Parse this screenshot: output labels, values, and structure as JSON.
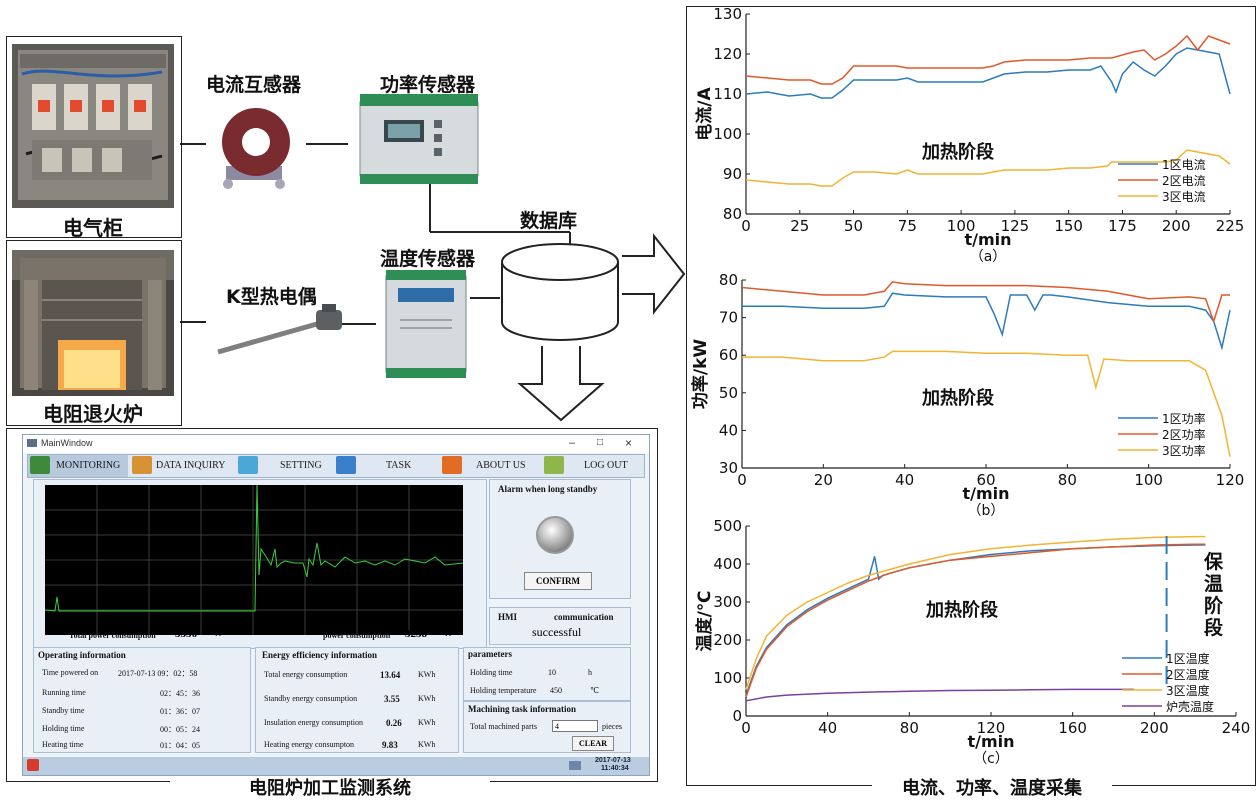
{
  "left": {
    "cabinet_label": "电气柜",
    "furnace_label": "电阻退火炉",
    "ct_label": "电流互感器",
    "power_sensor_label": "功率传感器",
    "thermocouple_label": "K型热电偶",
    "temp_sensor_label": "温度传感器",
    "database_label": "数据库",
    "system_label": "电阻炉加工监测系统",
    "right_caption": "电流、功率、温度采集"
  },
  "window": {
    "title": "MainWindow",
    "title_controls": [
      "–",
      "□",
      "×"
    ],
    "nav": [
      "MONITORING",
      "DATA INQUIRY",
      "SETTING",
      "TASK",
      "ABOUT US",
      "LOG OUT"
    ],
    "alarm_title": "Alarm when long standby",
    "confirm": "CONFIRM",
    "hmi_label": "HMI",
    "comm_label": "communication",
    "comm_status": "successful",
    "total_power_label": "Total power consumption",
    "total_power_value": "5356",
    "total_power_unit": "W",
    "power_label": "power consumption",
    "power_value": "3258",
    "power_unit": "W",
    "operating": {
      "title": "Operating information",
      "rows": [
        {
          "label": "Time powered on",
          "value": "2017-07-13      09：02：58"
        },
        {
          "label": "Running time",
          "value": "02：45：36"
        },
        {
          "label": "Standby time",
          "value": "01：36：07"
        },
        {
          "label": "Holding time",
          "value": "00：05：24"
        },
        {
          "label": "Heating time",
          "value": "01：04：05"
        }
      ]
    },
    "energy": {
      "title": "Energy efficiency information",
      "rows": [
        {
          "label": "Total energy consumption",
          "value": "13.64",
          "unit": "KWh"
        },
        {
          "label": "Standby energy consumption",
          "value": "3.55",
          "unit": "KWh"
        },
        {
          "label": "Insulation energy consumption",
          "value": "0.26",
          "unit": "KWh"
        },
        {
          "label": "Heating energy consumpton",
          "value": "9.83",
          "unit": "KWh"
        }
      ]
    },
    "parameters": {
      "title": "parameters",
      "holding_time_label": "Holding time",
      "holding_time_value": "10",
      "holding_time_unit": "h",
      "holding_temp_label": "Holding temperature",
      "holding_temp_value": "450",
      "holding_temp_unit": "℃"
    },
    "task": {
      "title": "Machining task information",
      "parts_label": "Total machined parts",
      "parts_value": "4",
      "parts_unit": "pieces",
      "clear": "CLEAR"
    },
    "status_date": "2017-07-13",
    "status_time": "11:40:34"
  },
  "chart_data": [
    {
      "type": "line",
      "caption": "（a）",
      "ylabel": "电流/A",
      "xlabel": "t/min",
      "annotation": "加热阶段",
      "xlim": [
        0,
        225
      ],
      "ylim": [
        80,
        130
      ],
      "xticks": [
        0,
        25,
        50,
        75,
        100,
        125,
        150,
        175,
        200,
        225
      ],
      "yticks": [
        80,
        90,
        100,
        110,
        120,
        130
      ],
      "legend_position": "bottom-right",
      "series": [
        {
          "name": "1区电流",
          "color": "#2b7bbf",
          "x": [
            0,
            10,
            20,
            30,
            35,
            40,
            45,
            50,
            60,
            70,
            75,
            80,
            90,
            100,
            110,
            115,
            120,
            130,
            140,
            150,
            160,
            165,
            170,
            172,
            175,
            180,
            185,
            190,
            195,
            200,
            205,
            210,
            215,
            220,
            225
          ],
          "y": [
            110,
            110.5,
            109.5,
            110,
            109,
            109,
            111,
            113.5,
            113.5,
            113.5,
            114,
            113,
            113,
            113,
            113,
            114,
            115,
            115.5,
            115.5,
            116,
            116,
            117,
            113,
            110.5,
            115,
            118,
            116,
            114.5,
            117,
            120,
            121.5,
            121,
            120.5,
            120,
            110
          ]
        },
        {
          "name": "2区电流",
          "color": "#e0592a",
          "x": [
            0,
            10,
            20,
            30,
            35,
            40,
            45,
            50,
            60,
            70,
            75,
            80,
            90,
            100,
            110,
            115,
            120,
            130,
            140,
            150,
            160,
            170,
            180,
            185,
            190,
            195,
            200,
            205,
            210,
            215,
            220,
            225
          ],
          "y": [
            114.5,
            114,
            113.5,
            113.5,
            112.5,
            112.5,
            114,
            117,
            117,
            117,
            116.5,
            116.5,
            116.5,
            116.5,
            116.5,
            117,
            118,
            118.5,
            118.5,
            118.5,
            119,
            119,
            120.5,
            121,
            118.5,
            120,
            122,
            124.5,
            121,
            124.5,
            123.5,
            122.5
          ]
        },
        {
          "name": "3区电流",
          "color": "#f2b431",
          "x": [
            0,
            10,
            20,
            30,
            35,
            40,
            45,
            50,
            60,
            70,
            75,
            80,
            90,
            100,
            110,
            120,
            130,
            140,
            150,
            160,
            168,
            170,
            180,
            190,
            195,
            200,
            205,
            210,
            215,
            220,
            225
          ],
          "y": [
            88.5,
            88,
            87.5,
            87.5,
            87,
            87,
            89,
            90.5,
            90.5,
            90,
            91,
            90,
            90,
            90,
            90,
            91,
            91,
            91,
            91.5,
            91.5,
            92,
            93,
            93,
            93,
            93,
            93.5,
            96,
            95.5,
            95,
            94.5,
            92.5
          ]
        }
      ]
    },
    {
      "type": "line",
      "caption": "（b）",
      "ylabel": "功率/kW",
      "xlabel": "t/min",
      "annotation": "加热阶段",
      "xlim": [
        0,
        120
      ],
      "ylim": [
        30,
        80
      ],
      "xticks": [
        0,
        20,
        40,
        60,
        80,
        100,
        120
      ],
      "yticks": [
        30,
        40,
        50,
        60,
        70,
        80
      ],
      "legend_position": "bottom-right",
      "series": [
        {
          "name": "1区功率",
          "color": "#2b7bbf",
          "x": [
            0,
            10,
            20,
            30,
            35,
            37,
            40,
            50,
            60,
            62,
            64,
            66,
            70,
            72,
            74,
            76,
            80,
            90,
            100,
            110,
            114,
            116,
            118,
            120
          ],
          "y": [
            73,
            73,
            72.5,
            72.5,
            73,
            76.5,
            76,
            75.5,
            75.5,
            71,
            65.5,
            76,
            76,
            72,
            76,
            76,
            75.5,
            74,
            73,
            73,
            72,
            69,
            62,
            72
          ]
        },
        {
          "name": "2区功率",
          "color": "#e0592a",
          "x": [
            0,
            10,
            20,
            30,
            35,
            37,
            40,
            50,
            60,
            70,
            80,
            90,
            100,
            110,
            114,
            116,
            118,
            120
          ],
          "y": [
            78,
            77,
            76,
            76,
            77,
            79.5,
            79,
            78.5,
            78.5,
            78.5,
            78,
            77,
            75,
            75.5,
            75,
            69,
            76,
            76
          ]
        },
        {
          "name": "3区功率",
          "color": "#f2b431",
          "x": [
            0,
            10,
            20,
            30,
            35,
            37,
            40,
            50,
            60,
            70,
            80,
            85,
            87,
            89,
            95,
            100,
            110,
            114,
            116,
            118,
            120
          ],
          "y": [
            59.5,
            59.5,
            58.5,
            58.5,
            59.5,
            61,
            61,
            61,
            60.5,
            60.5,
            60,
            60,
            51.5,
            59,
            58.5,
            58.5,
            58.5,
            56,
            50,
            44,
            33
          ]
        }
      ]
    },
    {
      "type": "line",
      "caption": "（c）",
      "ylabel": "温度/℃",
      "xlabel": "t/min",
      "annotation": "加热阶段",
      "annotation2": [
        "保",
        "温",
        "阶",
        "段"
      ],
      "xlim": [
        0,
        240
      ],
      "ylim": [
        0,
        500
      ],
      "xticks": [
        0,
        40,
        80,
        120,
        160,
        200,
        240
      ],
      "yticks": [
        0,
        100,
        200,
        300,
        400,
        500
      ],
      "vline_x": 206,
      "legend_position": "bottom-right",
      "series": [
        {
          "name": "1区温度",
          "color": "#2b7bbf",
          "x": [
            0,
            5,
            10,
            20,
            30,
            40,
            50,
            60,
            63,
            65,
            67,
            80,
            100,
            120,
            140,
            160,
            180,
            200,
            220,
            225
          ],
          "y": [
            55,
            130,
            180,
            240,
            280,
            310,
            335,
            360,
            420,
            360,
            370,
            390,
            410,
            425,
            435,
            440,
            445,
            448,
            450,
            450
          ]
        },
        {
          "name": "2区温度",
          "color": "#e0592a",
          "x": [
            0,
            5,
            10,
            20,
            30,
            40,
            50,
            60,
            70,
            80,
            90,
            100,
            120,
            140,
            160,
            180,
            200,
            220,
            225
          ],
          "y": [
            50,
            125,
            175,
            235,
            275,
            305,
            330,
            355,
            375,
            390,
            400,
            410,
            420,
            430,
            440,
            445,
            450,
            452,
            452
          ]
        },
        {
          "name": "3区温度",
          "color": "#f2b431",
          "x": [
            0,
            5,
            10,
            20,
            30,
            40,
            50,
            60,
            80,
            100,
            120,
            140,
            160,
            180,
            200,
            220,
            225
          ],
          "y": [
            70,
            150,
            210,
            265,
            300,
            325,
            350,
            370,
            400,
            425,
            440,
            450,
            458,
            465,
            470,
            472,
            472
          ]
        },
        {
          "name": "炉壳温度",
          "color": "#7b3fa0",
          "x": [
            0,
            10,
            20,
            40,
            60,
            80,
            100,
            120,
            140,
            160,
            180,
            190
          ],
          "y": [
            40,
            50,
            55,
            60,
            63,
            65,
            67,
            68,
            69,
            70,
            70,
            70
          ]
        }
      ]
    }
  ]
}
